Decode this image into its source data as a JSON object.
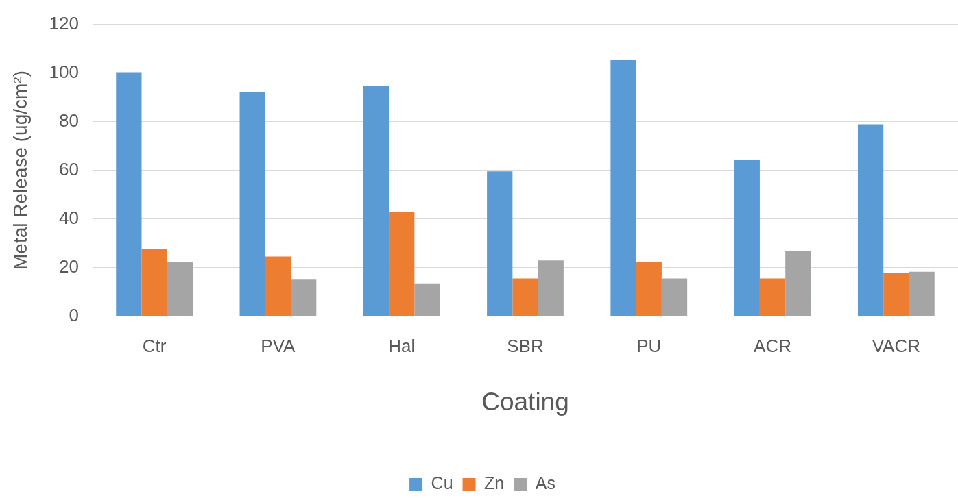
{
  "chart_data": {
    "type": "bar",
    "xlabel": "Coating",
    "ylabel": "Metal Release (ug/cm²)",
    "categories": [
      "Ctr",
      "PVA",
      "Hal",
      "SBR",
      "PU",
      "ACR",
      "VACR"
    ],
    "series": [
      {
        "name": "Cu",
        "color": "#5b9bd5",
        "values": [
          100.3,
          92.1,
          94.7,
          59.5,
          105.3,
          64.2,
          78.9
        ]
      },
      {
        "name": "Zn",
        "color": "#ed7d31",
        "values": [
          27.6,
          24.5,
          42.9,
          15.5,
          22.4,
          15.5,
          17.6
        ]
      },
      {
        "name": "As",
        "color": "#a5a5a5",
        "values": [
          22.4,
          15,
          13.4,
          22.9,
          15.5,
          26.6,
          18.2
        ]
      }
    ],
    "ylim": [
      0,
      120
    ],
    "yticks": [
      0,
      20,
      40,
      60,
      80,
      100,
      120
    ],
    "grid": "y",
    "legend": "bottom"
  }
}
